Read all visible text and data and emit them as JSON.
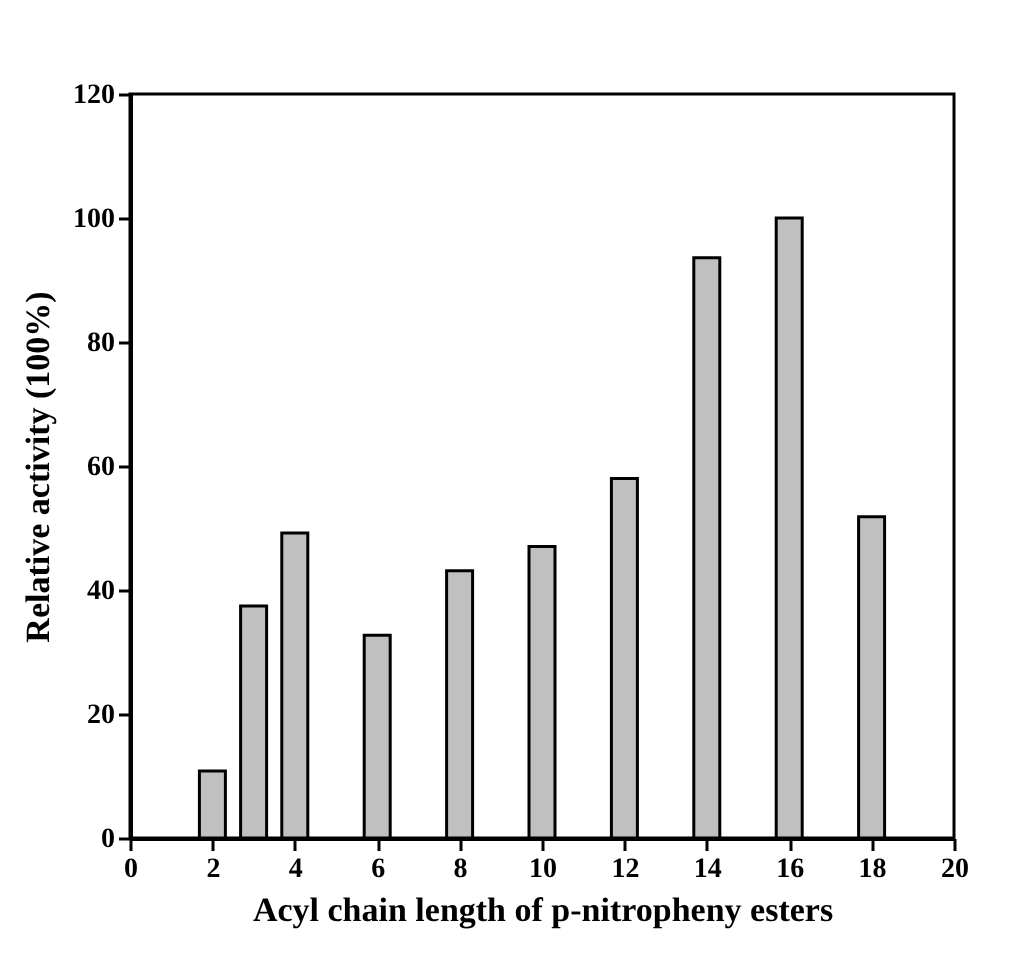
{
  "chart_data": {
    "type": "bar",
    "xlabel": "Acyl chain length of p-nitropheny esters",
    "ylabel": "Relative activity (100%)",
    "x": [
      2,
      3,
      4,
      6,
      8,
      10,
      12,
      14,
      16,
      18
    ],
    "values": [
      10.8,
      37.4,
      49.2,
      32.7,
      43.1,
      47.0,
      58.0,
      93.6,
      100,
      51.8
    ],
    "color": "#c0c0c0",
    "xlim": [
      0,
      20
    ],
    "xticks": [
      0,
      2,
      4,
      6,
      8,
      10,
      12,
      14,
      16,
      18,
      20
    ],
    "ylim": [
      0,
      120
    ],
    "yticks": [
      0,
      20,
      40,
      60,
      80,
      100,
      120
    ],
    "grid": false
  }
}
